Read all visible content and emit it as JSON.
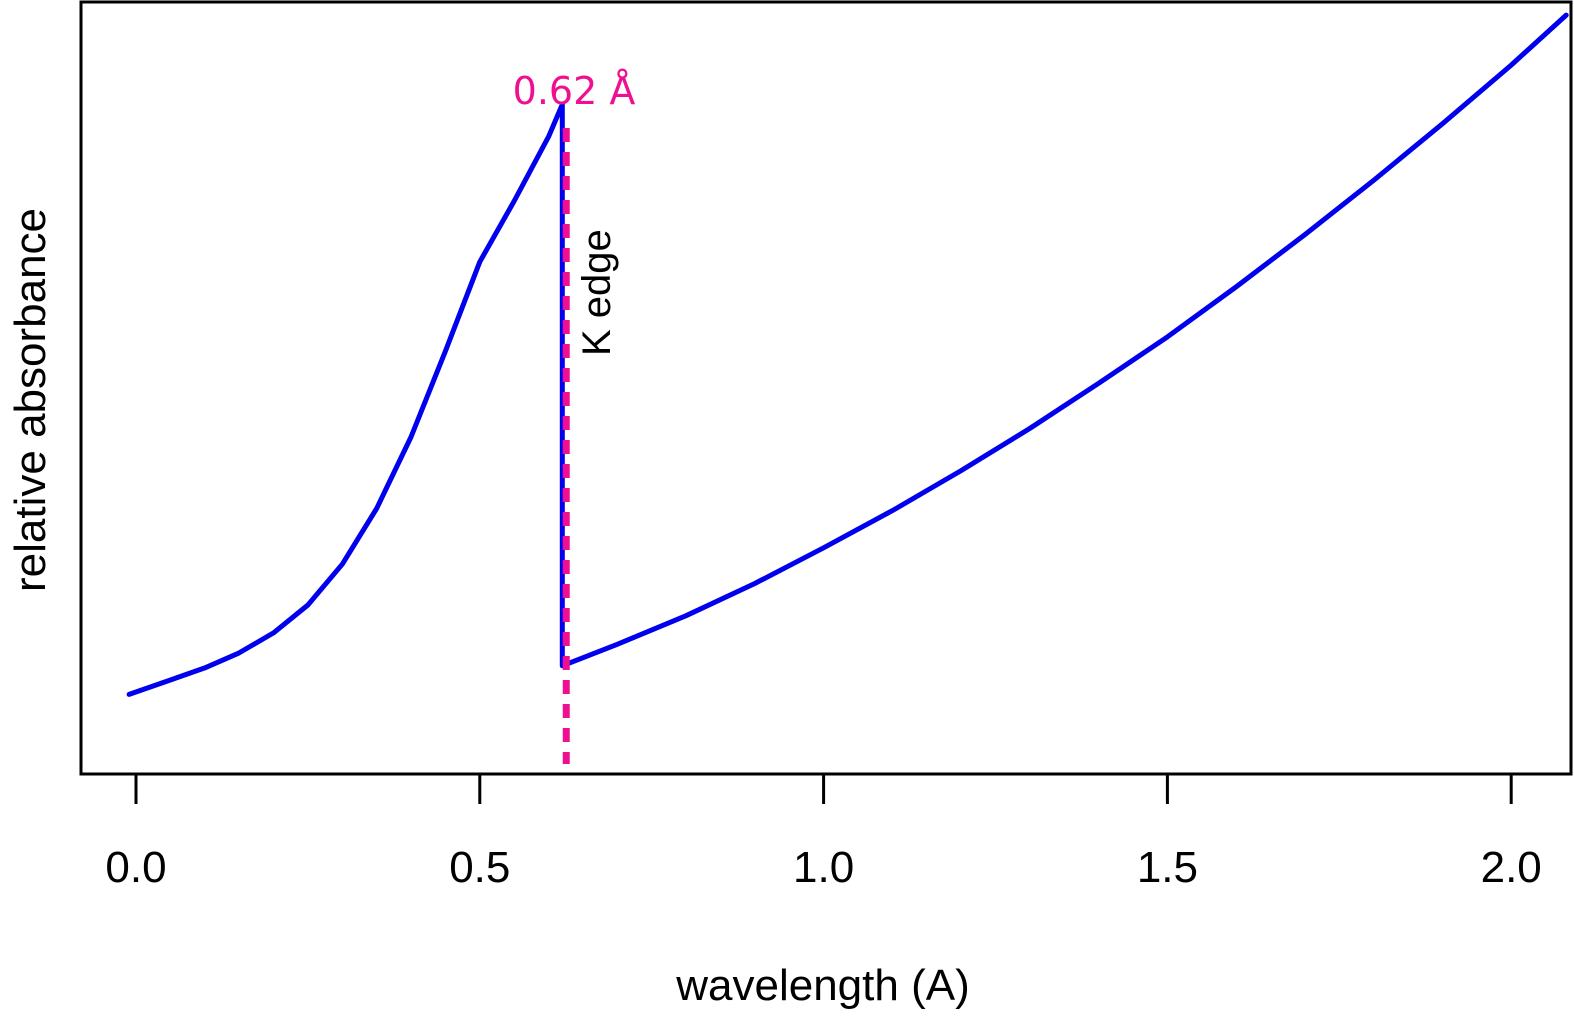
{
  "chart_data": {
    "type": "line",
    "title": "",
    "xlabel": "wavelength (A)",
    "ylabel": "relative absorbance",
    "xlim": [
      -0.08,
      2.08
    ],
    "ylim": [
      0.0,
      1.0
    ],
    "x_ticks": [
      0.0,
      0.5,
      1.0,
      1.5,
      2.0
    ],
    "x_tick_labels": [
      "0.0",
      "0.5",
      "1.0",
      "1.5",
      "2.0"
    ],
    "y_ticks_shown": false,
    "grid": false,
    "legend": "none",
    "series": [
      {
        "color": "#0000ee",
        "points": [
          [
            -0.01,
            0.11
          ],
          [
            0.05,
            0.13
          ],
          [
            0.1,
            0.147
          ],
          [
            0.15,
            0.168
          ],
          [
            0.2,
            0.196
          ],
          [
            0.25,
            0.235
          ],
          [
            0.3,
            0.292
          ],
          [
            0.35,
            0.37
          ],
          [
            0.4,
            0.47
          ],
          [
            0.45,
            0.59
          ],
          [
            0.5,
            0.715
          ],
          [
            0.55,
            0.8
          ],
          [
            0.6,
            0.89
          ],
          [
            0.62,
            0.935
          ],
          [
            0.62,
            0.15
          ],
          [
            0.7,
            0.18
          ],
          [
            0.8,
            0.22
          ],
          [
            0.9,
            0.265
          ],
          [
            1.0,
            0.315
          ],
          [
            1.1,
            0.367
          ],
          [
            1.2,
            0.423
          ],
          [
            1.3,
            0.482
          ],
          [
            1.4,
            0.545
          ],
          [
            1.5,
            0.61
          ],
          [
            1.6,
            0.68
          ],
          [
            1.7,
            0.753
          ],
          [
            1.8,
            0.829
          ],
          [
            1.9,
            0.908
          ],
          [
            2.0,
            0.99
          ],
          [
            2.08,
            1.06
          ]
        ]
      }
    ],
    "annotations": [
      {
        "text": "0.62 Å",
        "x": 0.625,
        "color": "#ee1090",
        "style": "dotted vertical line"
      },
      {
        "text": "K edge",
        "x": 0.62,
        "rotated": true
      }
    ]
  }
}
